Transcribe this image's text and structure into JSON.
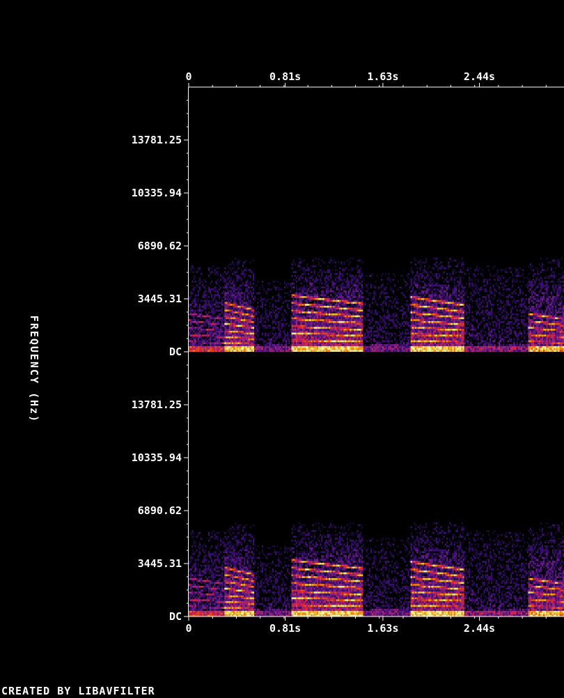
{
  "chart_data": {
    "type": "heatmap",
    "title": "",
    "subtitle": "",
    "xlabel": "",
    "ylabel": "FREQUENCY (Hz)",
    "credit": "CREATED BY LIBAVFILTER",
    "grid": false,
    "legend": "none",
    "x_unit": "s",
    "x_ticks": [
      "0",
      "0.81s",
      "1.63s",
      "2.44s"
    ],
    "x_tick_values": [
      0,
      0.81,
      1.63,
      2.44
    ],
    "x_range": [
      0,
      3.15
    ],
    "y_unit": "Hz",
    "y_ticks": [
      "DC",
      "3445.31",
      "6890.62",
      "10335.94",
      "13781.25"
    ],
    "y_tick_values": [
      0,
      3445.31,
      6890.62,
      10335.94,
      13781.25
    ],
    "y_range": [
      0,
      17226.56
    ],
    "channels": [
      {
        "channel": 1
      },
      {
        "channel": 2
      }
    ],
    "colormap": [
      "#000000",
      "#1a0a3c",
      "#3b0f70",
      "#6a1b8a",
      "#a3237c",
      "#d7264f",
      "#f24a1a",
      "#fb8c14",
      "#fcc428",
      "#fff6a0"
    ],
    "energy_bands": [
      {
        "t_start": 0.0,
        "t_end": 0.3,
        "f_max": 5500,
        "harmonics": [
          600,
          1050,
          1500,
          1950,
          2400
        ],
        "peak": 0.55
      },
      {
        "t_start": 0.3,
        "t_end": 0.55,
        "f_max": 6000,
        "harmonics": [
          500,
          900,
          1300,
          1750,
          2200,
          2650,
          3100
        ],
        "peak": 0.95
      },
      {
        "t_start": 0.55,
        "t_end": 0.85,
        "f_max": 4500,
        "harmonics": [
          400
        ],
        "peak": 0.3
      },
      {
        "t_start": 0.85,
        "t_end": 1.45,
        "f_max": 6000,
        "harmonics": [
          700,
          1150,
          1600,
          2100,
          2600,
          3100,
          3600
        ],
        "peak": 1.0
      },
      {
        "t_start": 1.45,
        "t_end": 1.85,
        "f_max": 5000,
        "harmonics": [
          400
        ],
        "peak": 0.3
      },
      {
        "t_start": 1.85,
        "t_end": 2.3,
        "f_max": 6000,
        "harmonics": [
          650,
          1100,
          1550,
          2000,
          2500,
          3000,
          3500
        ],
        "peak": 1.0
      },
      {
        "t_start": 2.3,
        "t_end": 2.85,
        "f_max": 5500,
        "harmonics": [
          450
        ],
        "peak": 0.35
      },
      {
        "t_start": 2.85,
        "t_end": 3.15,
        "f_max": 6000,
        "harmonics": [
          600,
          1050,
          1500,
          1950,
          2400
        ],
        "peak": 0.9
      }
    ]
  }
}
